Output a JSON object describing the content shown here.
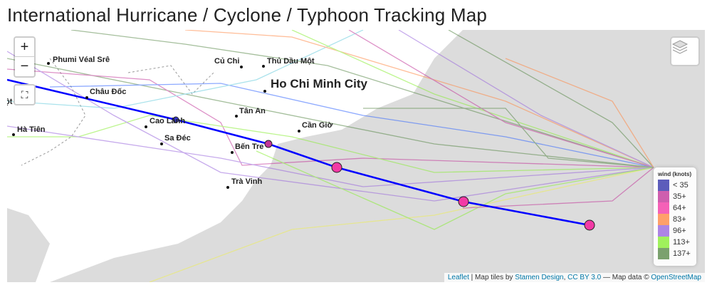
{
  "title": "International Hurricane / Cyclone / Typhoon Tracking Map",
  "controls": {
    "zoom_in": "+",
    "zoom_out": "−",
    "fullscreen": "⛶"
  },
  "cities": [
    "Phumi Véal Srê",
    "Củ Chi",
    "Thủ Dầu Một",
    "Ho Chi Minh City",
    "Châu Đốc",
    "Tân An",
    "Cao Lãnh",
    "Cần Giờ",
    "Hà Tiên",
    "Sa Đéc",
    "Bến Tre",
    "Trà Vinh",
    "ột"
  ],
  "legend": {
    "title": "wind (knots)",
    "items": [
      {
        "label": "< 35",
        "color": "#3333aa"
      },
      {
        "label": "35+",
        "color": "#c2369a"
      },
      {
        "label": "64+",
        "color": "#f23aa5"
      },
      {
        "label": "83+",
        "color": "#ff8844"
      },
      {
        "label": "96+",
        "color": "#9966dd"
      },
      {
        "label": "113+",
        "color": "#88ee33"
      },
      {
        "label": "137+",
        "color": "#5a8a4a"
      }
    ]
  },
  "attribution": {
    "leaflet": "Leaflet",
    "text1": " | Map tiles by ",
    "stamen": "Stamen Design",
    "sep": ", ",
    "cc": "CC BY 3.0",
    "text2": " — Map data © ",
    "osm": "OpenStreetMap"
  }
}
